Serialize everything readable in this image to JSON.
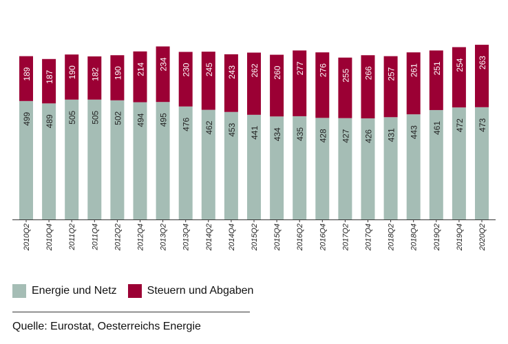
{
  "chart_data": {
    "type": "bar",
    "stacked": true,
    "categories": [
      "2010Q2",
      "2010Q4",
      "2011Q2",
      "2011Q4",
      "2012Q2",
      "2012Q4",
      "2013Q2",
      "2013Q4",
      "2014Q2",
      "2014Q4",
      "2015Q2",
      "2015Q4",
      "2016Q2",
      "2016Q4",
      "2017Q2",
      "2017Q4",
      "2018Q2",
      "2018Q4",
      "2019Q2",
      "2019Q4",
      "2020Q2"
    ],
    "series": [
      {
        "name": "Energie und Netz",
        "color": "#a5bdb5",
        "values": [
          499,
          489,
          505,
          505,
          502,
          494,
          495,
          476,
          462,
          453,
          441,
          434,
          435,
          428,
          427,
          426,
          431,
          443,
          461,
          472,
          473
        ]
      },
      {
        "name": "Steuern und Abgaben",
        "color": "#9b0034",
        "values": [
          189,
          187,
          190,
          182,
          190,
          214,
          234,
          230,
          245,
          243,
          262,
          260,
          277,
          276,
          255,
          266,
          257,
          261,
          251,
          254,
          263
        ]
      }
    ],
    "legend": "bottom-left",
    "grid": false
  },
  "source": "Quelle: Eurostat, Oesterreichs Energie"
}
